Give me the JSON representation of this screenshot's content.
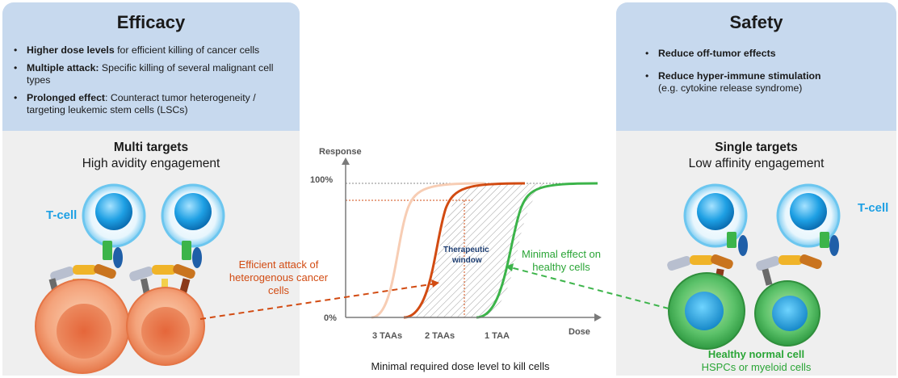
{
  "efficacy": {
    "title": "Efficacy",
    "bullets": [
      {
        "bold": "Higher dose levels",
        "text": " for efficient killing of cancer cells"
      },
      {
        "bold": "Multiple attack:",
        "text": " Specific killing of several malignant cell types"
      },
      {
        "bold": "Prolonged effect",
        "text": ": Counteract tumor heterogeneity / targeting leukemic stem cells (LSCs)"
      }
    ],
    "sub_title_bold": "Multi targets",
    "sub_title": "High avidity engagement",
    "tcell_label": "T-cell"
  },
  "safety": {
    "title": "Safety",
    "bullets": [
      {
        "bold": "Reduce off-tumor effects",
        "text": ""
      },
      {
        "bold": "Reduce hyper-immune stimulation",
        "text": "(e.g. cytokine release syndrome)"
      }
    ],
    "sub_title_bold": "Single targets",
    "sub_title": "Low affinity engagement",
    "tcell_label": "T-cell",
    "healthy_title": "Healthy normal cell",
    "healthy_sub": "HSPCs or myeloid cells"
  },
  "bullet_char": "•",
  "annotations": {
    "efficient": "Efficient attack of heterogenous cancer cells",
    "minimal": "Minimal effect on healthy cells"
  },
  "chart": {
    "y_label": "Response",
    "x_label": "Dose",
    "y_top": "100%",
    "y_bottom": "0%",
    "x_ticks": [
      "3 TAAs",
      "2 TAAs",
      "1 TAA"
    ],
    "window_label_1": "Therapeutic",
    "window_label_2": "window",
    "caption": "Minimal required dose level to kill cells"
  },
  "colors": {
    "orange": "#d24b12",
    "light_orange": "#f7cdb4",
    "green": "#3cb44a",
    "tcell_blue": "#1ea0e4",
    "panel_head": "#c7d9ee",
    "panel_body": "#efefef"
  }
}
